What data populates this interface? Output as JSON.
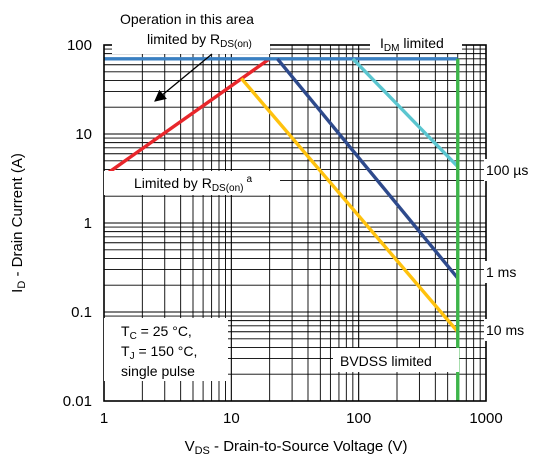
{
  "chart_data": {
    "type": "line",
    "title": "",
    "xlabel": {
      "main": "V",
      "sub": "DS",
      "rest": " - Drain-to-Source Voltage (V)"
    },
    "ylabel": {
      "main": "I",
      "sub": "D",
      "rest": " - Drain Current (A)"
    },
    "x_scale": "log",
    "y_scale": "log",
    "xlim": [
      1,
      1000
    ],
    "ylim": [
      0.01,
      100
    ],
    "grid": true,
    "x_ticks": [
      {
        "value": 1,
        "label": "1"
      },
      {
        "value": 10,
        "label": "10"
      },
      {
        "value": 100,
        "label": "100"
      },
      {
        "value": 1000,
        "label": "1000"
      }
    ],
    "y_ticks": [
      {
        "value": 100,
        "label": "100"
      },
      {
        "value": 10,
        "label": "10"
      },
      {
        "value": 1,
        "label": "1"
      },
      {
        "value": 0.1,
        "label": "0.1"
      },
      {
        "value": 0.01,
        "label": "0.01"
      }
    ],
    "series": [
      {
        "key": "rdson",
        "color": "#e8262b",
        "points": [
          [
            1,
            3.4
          ],
          [
            20,
            70
          ]
        ]
      },
      {
        "key": "idm",
        "color": "#3a7fc1",
        "points": [
          [
            1,
            70
          ],
          [
            600,
            70
          ]
        ]
      },
      {
        "key": "dc",
        "color": "#ffc20e",
        "points": [
          [
            12,
            42
          ],
          [
            600,
            0.06
          ]
        ]
      },
      {
        "key": "1ms",
        "label": "1 ms",
        "color": "#2e4a8c",
        "points": [
          [
            23,
            70
          ],
          [
            600,
            0.24
          ]
        ]
      },
      {
        "key": "100us",
        "label": "100 µs",
        "color": "#5bc6d0",
        "points": [
          [
            90,
            70
          ],
          [
            600,
            4.3
          ]
        ]
      },
      {
        "key": "bvdss",
        "color": "#3db54a",
        "points": [
          [
            600,
            0.01
          ],
          [
            600,
            70
          ]
        ]
      }
    ],
    "curve_labels": {
      "us100": "100 µs",
      "ms1": "1 ms",
      "ms10": "10 ms"
    },
    "annotations": {
      "operation_line1": "Operation in this area",
      "operation_line2_main": "limited by R",
      "operation_line2_sub": "DS(on)",
      "idm_main": "I",
      "idm_sub": "DM",
      "idm_rest": " limited",
      "limited_main": "Limited by R",
      "limited_sub": "DS(on)",
      "limited_sup": "a",
      "bvdss": "BVDSS limited",
      "cond_tc_main": "T",
      "cond_tc_sub": "C",
      "cond_tc_rest": " = 25 °C,",
      "cond_tj_main": "T",
      "cond_tj_sub": "J",
      "cond_tj_rest": " = 150 °C,",
      "cond_pulse": "single pulse"
    }
  }
}
